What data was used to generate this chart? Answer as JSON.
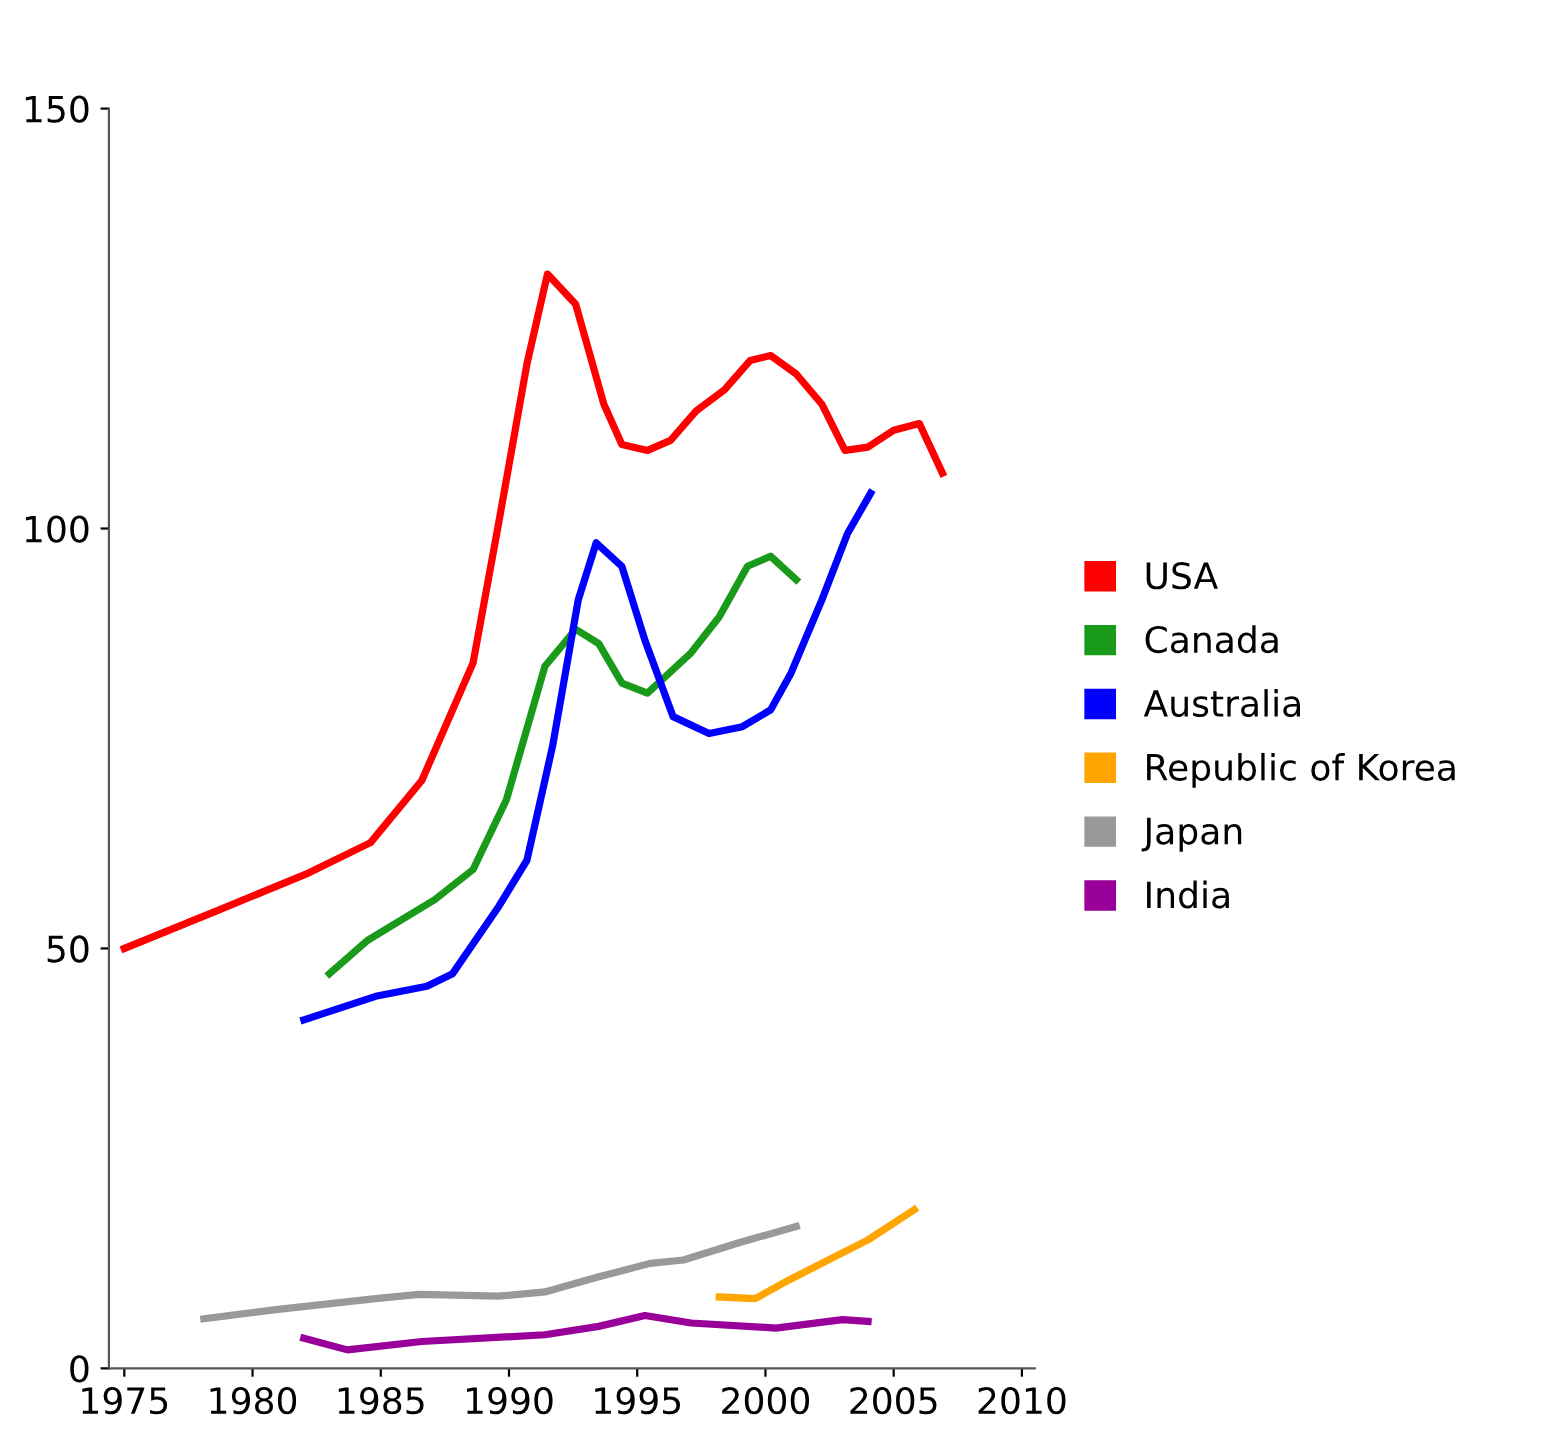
{
  "chart_data": {
    "type": "line",
    "xlim": [
      1974.4,
      2010.5
    ],
    "ylim": [
      0,
      150
    ],
    "xticks": [
      1975,
      1980,
      1985,
      1990,
      1995,
      2000,
      2005,
      2010
    ],
    "yticks": [
      0,
      50,
      100,
      150
    ],
    "grid": false,
    "legend": "right",
    "marker": "none",
    "line_style": "solid",
    "series": [
      {
        "name": "USA",
        "color": "#ff0000",
        "x": [
          1975,
          1978.7,
          1982.2,
          1984.6,
          1986.6,
          1988.6,
          1989.6,
          1990.7,
          1991.5,
          1992.6,
          1993.7,
          1994.4,
          1995.4,
          1996.3,
          1997.3,
          1998.4,
          1999.4,
          2000.2,
          2001.2,
          2002.2,
          2003.1,
          2004,
          2005,
          2006,
          2006.9
        ],
        "values": [
          50,
          54.6,
          59,
          62.6,
          70,
          84,
          100.7,
          119.6,
          130.3,
          126.7,
          114.8,
          110,
          109.3,
          110.5,
          114,
          116.5,
          120,
          120.6,
          118.4,
          114.8,
          109.3,
          109.7,
          111.7,
          112.5,
          106.6
        ]
      },
      {
        "name": "Canada",
        "color": "#1a9a1a",
        "x": [
          1983,
          1984.5,
          1987.1,
          1988.6,
          1989.9,
          1991.4,
          1992.6,
          1993.5,
          1994.4,
          1995.4,
          1997.1,
          1998.2,
          1999.3,
          2000.2,
          2001.2
        ],
        "values": [
          47,
          51,
          55.8,
          59.4,
          67.7,
          83.6,
          88,
          86.3,
          81.6,
          80.4,
          85.2,
          89.5,
          95.5,
          96.7,
          93.9
        ]
      },
      {
        "name": "Australia",
        "color": "#0000ff",
        "x": [
          1982,
          1984.8,
          1986.8,
          1987.8,
          1989.6,
          1990.7,
          1991.7,
          1992.7,
          1993.4,
          1994.4,
          1995.3,
          1996.4,
          1997.8,
          1999.1,
          2000.2,
          2001,
          2002.2,
          2003.2,
          2004.1
        ],
        "values": [
          41.5,
          44.3,
          45.5,
          47,
          55,
          60.5,
          74.1,
          91.5,
          98.3,
          95.5,
          86.7,
          77.6,
          75.6,
          76.4,
          78.4,
          82.8,
          91.5,
          99.4,
          104.2
        ]
      },
      {
        "name": "Republic of Korea",
        "color": "#ffa500",
        "x": [
          1998.2,
          1999.6,
          2000.9,
          2004,
          2005.8
        ],
        "values": [
          8.5,
          8.3,
          10.5,
          15.3,
          18.9
        ]
      },
      {
        "name": "Japan",
        "color": "#999999",
        "x": [
          1978.1,
          1980.9,
          1984.8,
          1986.5,
          1989.6,
          1991.4,
          1993.5,
          1995.5,
          1996.8,
          1998.9,
          2001.2
        ],
        "values": [
          5.9,
          7,
          8.3,
          8.8,
          8.6,
          9.1,
          10.9,
          12.5,
          12.9,
          14.9,
          16.9
        ]
      },
      {
        "name": "India",
        "color": "#990099",
        "x": [
          1982,
          1983.7,
          1986.6,
          1991.4,
          1993.5,
          1995.3,
          1997.1,
          2000.4,
          2003,
          2004
        ],
        "values": [
          3.6,
          2.2,
          3.2,
          4.0,
          5,
          6.3,
          5.4,
          4.8,
          5.8,
          5.6
        ]
      }
    ]
  }
}
